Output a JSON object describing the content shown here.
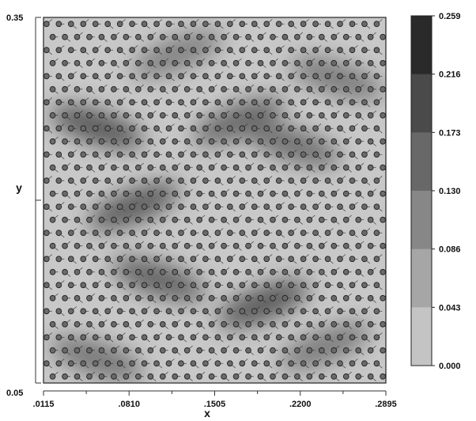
{
  "chart_data": {
    "type": "heatmap",
    "xlabel": "x",
    "ylabel": "y",
    "xlim": [
      0.0115,
      0.2895
    ],
    "ylim": [
      0.05,
      0.35
    ],
    "x_ticks": [
      ".0115",
      ".0810",
      ".1505",
      ".2200",
      ".2895"
    ],
    "y_ticks": [
      "0.05",
      "0.35"
    ],
    "colorbar": {
      "levels": [
        "0.259",
        "0.216",
        "0.173",
        "0.130",
        "0.086",
        "0.043",
        "0.000"
      ],
      "min": 0.0,
      "max": 0.259,
      "colors": [
        "#2a2a2a",
        "#4a4a4a",
        "#686868",
        "#878787",
        "#a6a6a6",
        "#c4c4c4",
        "#e0e0e0"
      ]
    },
    "marker_grid": {
      "columns": 28,
      "rows": 28
    },
    "field_background": "#c8c8c8",
    "dark_regions": [
      {
        "x": 0.055,
        "y": 0.26,
        "value": 0.22
      },
      {
        "x": 0.085,
        "y": 0.195,
        "value": 0.21
      },
      {
        "x": 0.105,
        "y": 0.135,
        "value": 0.2
      },
      {
        "x": 0.17,
        "y": 0.265,
        "value": 0.19
      },
      {
        "x": 0.215,
        "y": 0.245,
        "value": 0.18
      },
      {
        "x": 0.19,
        "y": 0.115,
        "value": 0.22
      },
      {
        "x": 0.25,
        "y": 0.3,
        "value": 0.16
      },
      {
        "x": 0.12,
        "y": 0.32,
        "value": 0.15
      },
      {
        "x": 0.055,
        "y": 0.07,
        "value": 0.17
      },
      {
        "x": 0.24,
        "y": 0.08,
        "value": 0.16
      }
    ]
  }
}
